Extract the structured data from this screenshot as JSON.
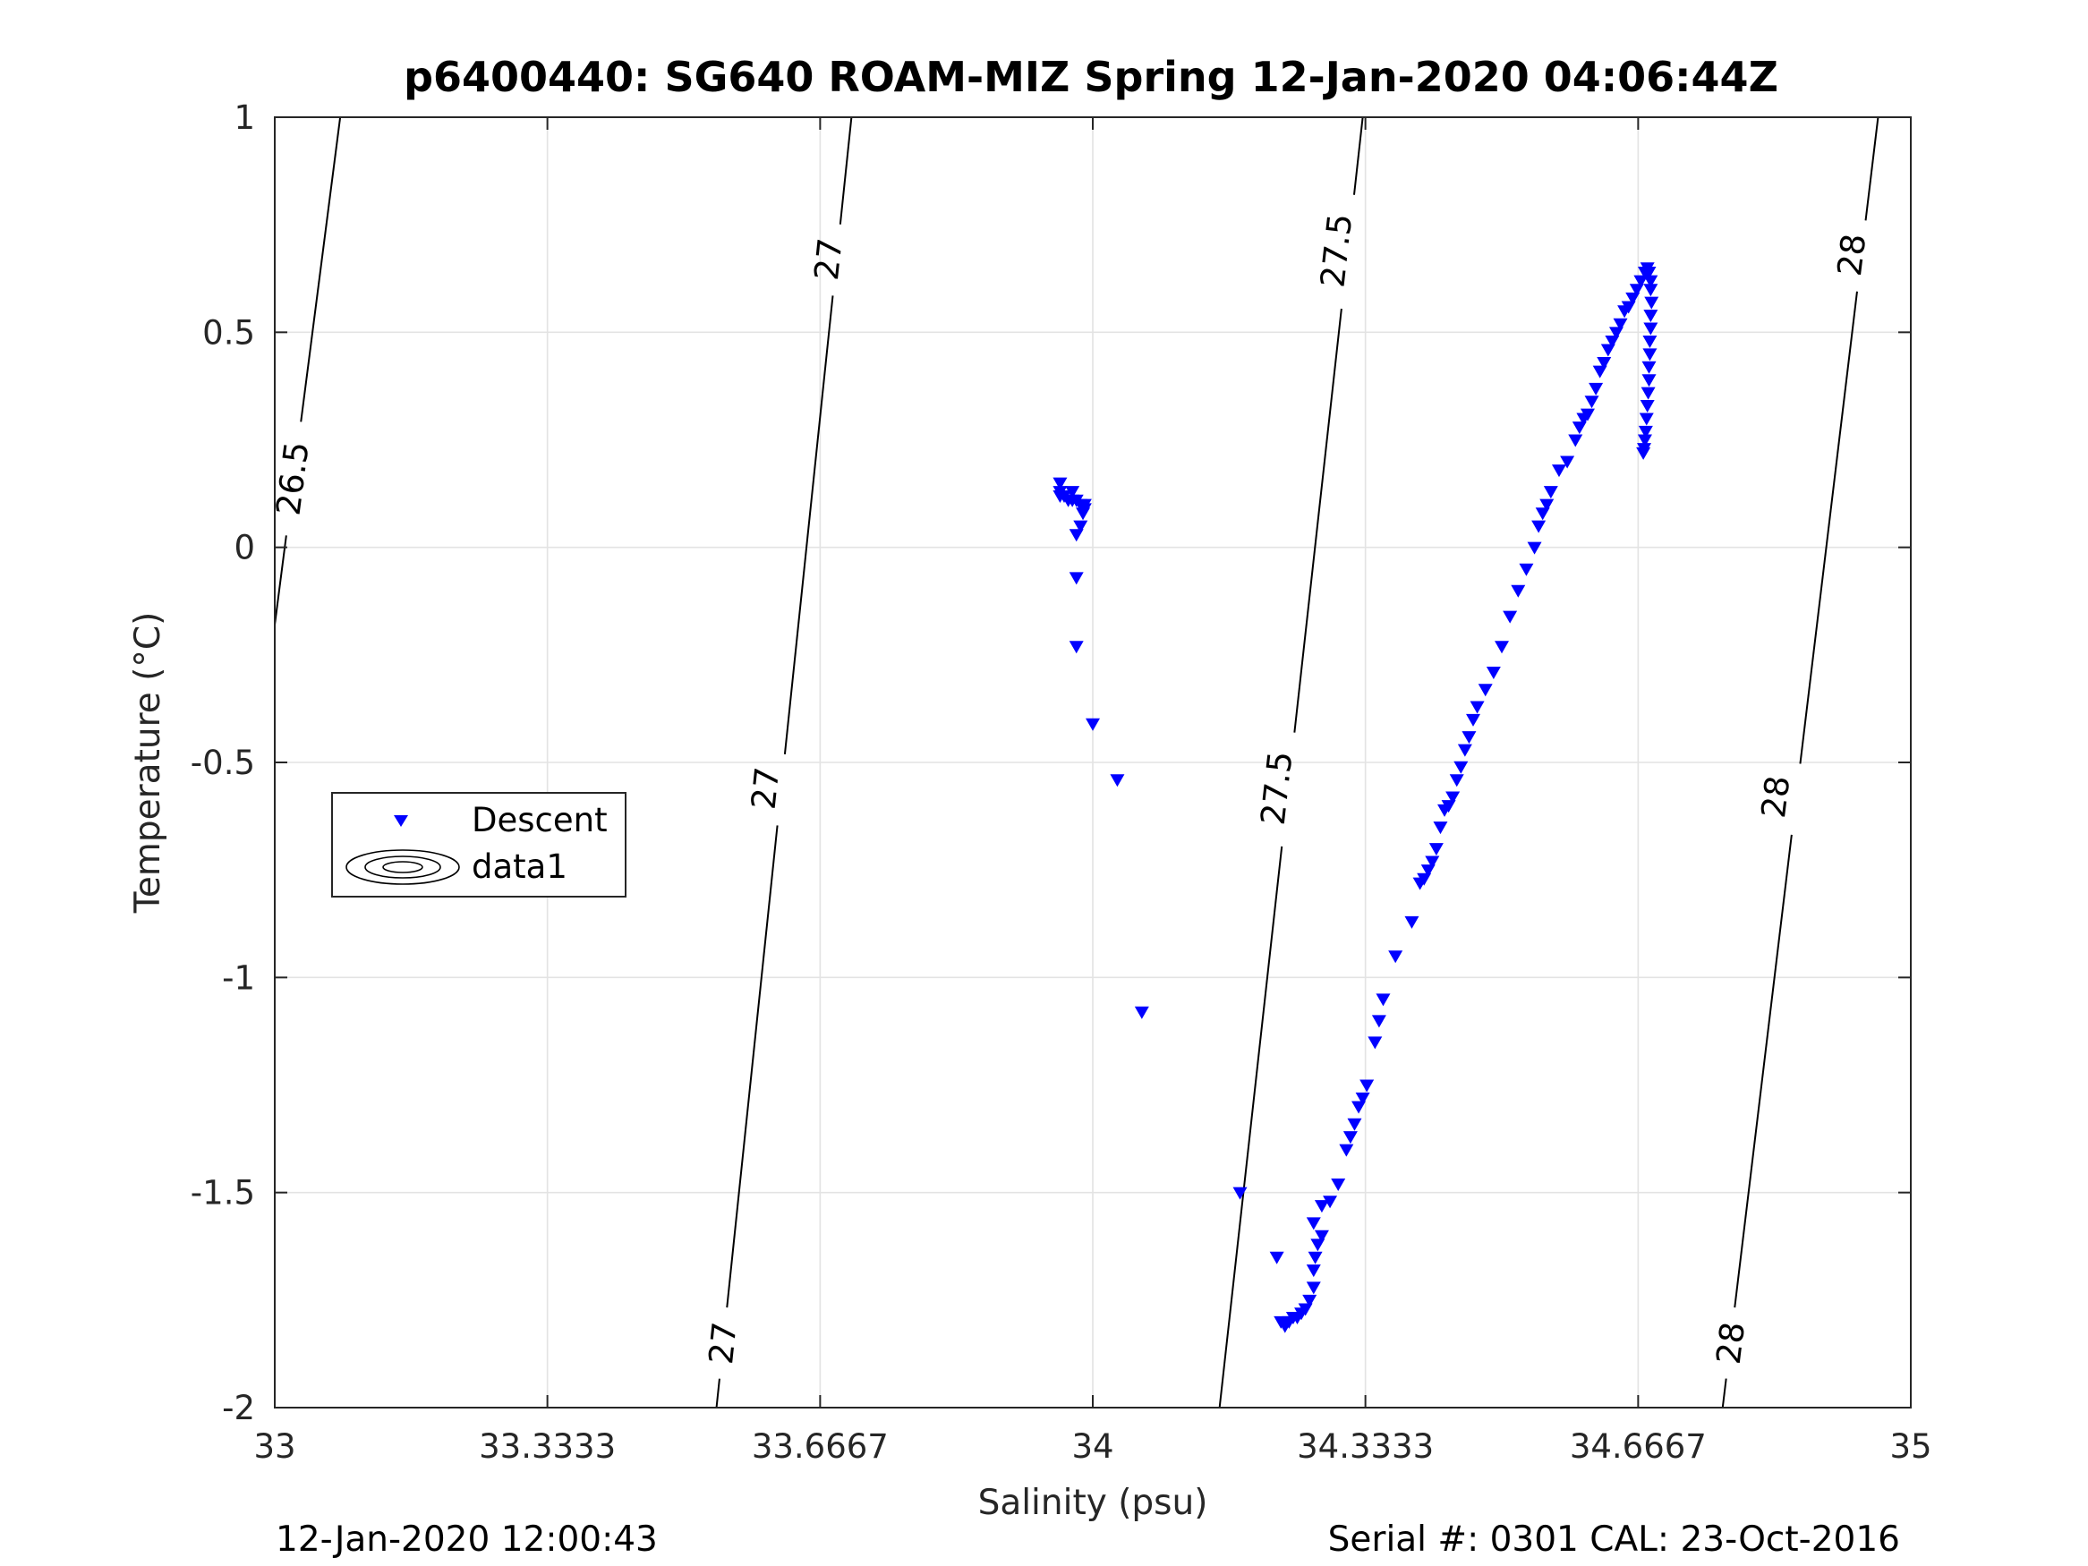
{
  "chart_data": {
    "type": "scatter",
    "title": "p6400440: SG640 ROAM-MIZ Spring 12-Jan-2020 04:06:44Z",
    "xlabel": "Salinity (psu)",
    "ylabel": "Temperature (°C)",
    "xlim": [
      33,
      35
    ],
    "ylim": [
      -2,
      1
    ],
    "grid": true,
    "x_ticks": [
      33,
      33.3333,
      33.6667,
      34,
      34.3333,
      34.6667,
      35
    ],
    "x_tick_labels": [
      "33",
      "33.3333",
      "33.6667",
      "34",
      "34.3333",
      "34.6667",
      "35"
    ],
    "y_ticks": [
      -2,
      -1.5,
      -1,
      -0.5,
      0,
      0.5,
      1
    ],
    "y_tick_labels": [
      "-2",
      "-1.5",
      "-1",
      "-0.5",
      "0",
      "0.5",
      "1"
    ],
    "legend": {
      "position": "left",
      "entries": [
        "Descent",
        "data1"
      ]
    },
    "series": [
      {
        "name": "Descent",
        "marker": "triangle-down",
        "color": "#0000ff",
        "points": [
          [
            33.96,
            0.15
          ],
          [
            33.96,
            0.13
          ],
          [
            33.96,
            0.12
          ],
          [
            33.965,
            0.12
          ],
          [
            33.97,
            0.11
          ],
          [
            33.975,
            0.11
          ],
          [
            33.98,
            0.11
          ],
          [
            33.985,
            0.1
          ],
          [
            33.99,
            0.1
          ],
          [
            33.99,
            0.09
          ],
          [
            33.975,
            0.13
          ],
          [
            33.988,
            0.08
          ],
          [
            33.985,
            0.05
          ],
          [
            33.98,
            0.03
          ],
          [
            33.98,
            -0.07
          ],
          [
            33.98,
            -0.23
          ],
          [
            34.0,
            -0.41
          ],
          [
            34.03,
            -0.54
          ],
          [
            34.06,
            -1.08
          ],
          [
            34.18,
            -1.5
          ],
          [
            34.225,
            -1.65
          ],
          [
            34.23,
            -1.8
          ],
          [
            34.235,
            -1.81
          ],
          [
            34.24,
            -1.8
          ],
          [
            34.245,
            -1.79
          ],
          [
            34.25,
            -1.79
          ],
          [
            34.255,
            -1.78
          ],
          [
            34.26,
            -1.77
          ],
          [
            34.265,
            -1.75
          ],
          [
            34.27,
            -1.72
          ],
          [
            34.27,
            -1.68
          ],
          [
            34.272,
            -1.65
          ],
          [
            34.275,
            -1.62
          ],
          [
            34.28,
            -1.6
          ],
          [
            34.27,
            -1.57
          ],
          [
            34.28,
            -1.53
          ],
          [
            34.29,
            -1.52
          ],
          [
            34.3,
            -1.48
          ],
          [
            34.31,
            -1.4
          ],
          [
            34.315,
            -1.37
          ],
          [
            34.32,
            -1.34
          ],
          [
            34.325,
            -1.3
          ],
          [
            34.33,
            -1.28
          ],
          [
            34.335,
            -1.25
          ],
          [
            34.345,
            -1.15
          ],
          [
            34.35,
            -1.1
          ],
          [
            34.355,
            -1.05
          ],
          [
            34.37,
            -0.95
          ],
          [
            34.39,
            -0.87
          ],
          [
            34.4,
            -0.78
          ],
          [
            34.405,
            -0.77
          ],
          [
            34.41,
            -0.75
          ],
          [
            34.415,
            -0.73
          ],
          [
            34.42,
            -0.7
          ],
          [
            34.425,
            -0.65
          ],
          [
            34.43,
            -0.61
          ],
          [
            34.435,
            -0.6
          ],
          [
            34.44,
            -0.58
          ],
          [
            34.445,
            -0.54
          ],
          [
            34.45,
            -0.51
          ],
          [
            34.455,
            -0.47
          ],
          [
            34.46,
            -0.44
          ],
          [
            34.465,
            -0.4
          ],
          [
            34.47,
            -0.37
          ],
          [
            34.48,
            -0.33
          ],
          [
            34.49,
            -0.29
          ],
          [
            34.5,
            -0.23
          ],
          [
            34.51,
            -0.16
          ],
          [
            34.52,
            -0.1
          ],
          [
            34.53,
            -0.05
          ],
          [
            34.54,
            0.0
          ],
          [
            34.545,
            0.05
          ],
          [
            34.55,
            0.08
          ],
          [
            34.555,
            0.1
          ],
          [
            34.56,
            0.13
          ],
          [
            34.57,
            0.18
          ],
          [
            34.58,
            0.2
          ],
          [
            34.59,
            0.25
          ],
          [
            34.595,
            0.28
          ],
          [
            34.6,
            0.3
          ],
          [
            34.605,
            0.31
          ],
          [
            34.61,
            0.34
          ],
          [
            34.615,
            0.37
          ],
          [
            34.62,
            0.41
          ],
          [
            34.625,
            0.43
          ],
          [
            34.63,
            0.46
          ],
          [
            34.635,
            0.48
          ],
          [
            34.64,
            0.5
          ],
          [
            34.645,
            0.52
          ],
          [
            34.65,
            0.55
          ],
          [
            34.655,
            0.56
          ],
          [
            34.66,
            0.58
          ],
          [
            34.665,
            0.6
          ],
          [
            34.67,
            0.62
          ],
          [
            34.675,
            0.64
          ],
          [
            34.678,
            0.65
          ],
          [
            34.68,
            0.64
          ],
          [
            34.682,
            0.62
          ],
          [
            34.682,
            0.6
          ],
          [
            34.683,
            0.57
          ],
          [
            34.682,
            0.54
          ],
          [
            34.682,
            0.51
          ],
          [
            34.681,
            0.48
          ],
          [
            34.681,
            0.45
          ],
          [
            34.68,
            0.42
          ],
          [
            34.68,
            0.39
          ],
          [
            34.679,
            0.36
          ],
          [
            34.678,
            0.33
          ],
          [
            34.677,
            0.3
          ],
          [
            34.676,
            0.27
          ],
          [
            34.675,
            0.25
          ],
          [
            34.674,
            0.23
          ],
          [
            34.673,
            0.22
          ]
        ]
      },
      {
        "name": "data1",
        "type": "contour",
        "color": "#000000",
        "isopycnals": [
          {
            "level": "26.5",
            "labels": [
              "26.5"
            ]
          },
          {
            "level": "27",
            "labels": [
              "27",
              "27",
              "27"
            ]
          },
          {
            "level": "27.5",
            "labels": [
              "27.5",
              "27.5"
            ]
          },
          {
            "level": "28",
            "labels": [
              "28",
              "28",
              "28"
            ]
          }
        ]
      }
    ]
  },
  "footer": {
    "left": "12-Jan-2020 12:00:43",
    "right": "Serial #: 0301  CAL: 23-Oct-2016"
  }
}
